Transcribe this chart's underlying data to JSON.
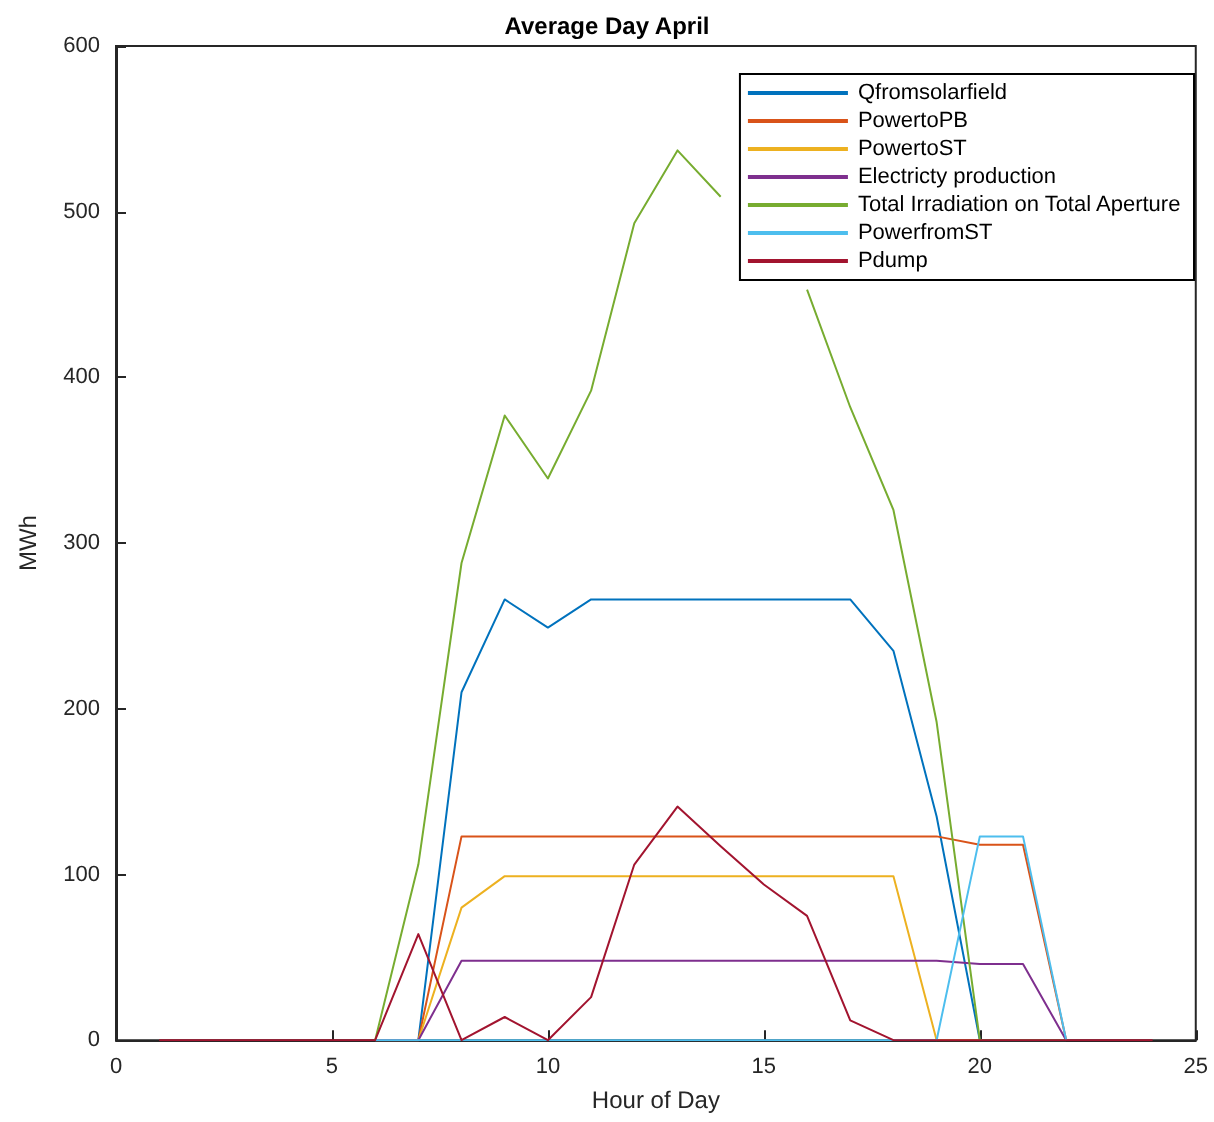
{
  "chart_data": {
    "type": "line",
    "title": "Average Day April",
    "xlabel": "Hour of Day",
    "ylabel": "MWh",
    "x": [
      1,
      2,
      3,
      4,
      5,
      6,
      7,
      8,
      9,
      10,
      11,
      12,
      13,
      14,
      15,
      16,
      17,
      18,
      19,
      20,
      21,
      22,
      23,
      24
    ],
    "series": [
      {
        "name": "Qfromsolarfield",
        "color": "#0072bd",
        "values": [
          null,
          null,
          null,
          null,
          null,
          0,
          0,
          210,
          266,
          249,
          266,
          266,
          266,
          266,
          266,
          266,
          266,
          235,
          135,
          0,
          0,
          0,
          null,
          null
        ]
      },
      {
        "name": "PowertoPB",
        "color": "#d95319",
        "values": [
          null,
          null,
          null,
          null,
          null,
          0,
          0,
          123,
          123,
          123,
          123,
          123,
          123,
          123,
          123,
          123,
          123,
          123,
          123,
          118,
          118,
          0,
          null,
          null
        ]
      },
      {
        "name": "PowertoST",
        "color": "#edb120",
        "values": [
          null,
          null,
          null,
          null,
          null,
          0,
          0,
          80,
          99,
          99,
          99,
          99,
          99,
          99,
          99,
          99,
          99,
          99,
          0,
          0,
          null,
          null,
          null,
          null
        ]
      },
      {
        "name": "Electricty production",
        "color": "#7e2f8e",
        "values": [
          null,
          null,
          null,
          null,
          null,
          0,
          0,
          48,
          48,
          48,
          48,
          48,
          48,
          48,
          48,
          48,
          48,
          48,
          48,
          46,
          46,
          0,
          null,
          null
        ]
      },
      {
        "name": "Total Irradiation on Total Aperture",
        "color": "#77ac30",
        "values": [
          null,
          null,
          null,
          null,
          null,
          0,
          106,
          288,
          377,
          339,
          392,
          493,
          537,
          509,
          null,
          453,
          382,
          320,
          192,
          0,
          0,
          0,
          null,
          null
        ]
      },
      {
        "name": "PowerfromST",
        "color": "#4dbeee",
        "values": [
          null,
          null,
          null,
          null,
          null,
          0,
          0,
          0,
          0,
          0,
          0,
          0,
          0,
          0,
          0,
          0,
          0,
          0,
          0,
          123,
          123,
          0,
          null,
          null
        ]
      },
      {
        "name": "Pdump",
        "color": "#a2142f",
        "values": [
          0,
          0,
          0,
          0,
          0,
          0,
          64,
          0,
          14,
          0,
          26,
          106,
          141,
          117,
          94,
          75,
          12,
          0,
          0,
          0,
          0,
          0,
          0,
          0
        ]
      }
    ],
    "xlim": [
      0,
      25
    ],
    "xticks": [
      0,
      5,
      10,
      15,
      20,
      25
    ],
    "ylim": [
      0,
      600
    ],
    "yticks": [
      0,
      100,
      200,
      300,
      400,
      500,
      600
    ],
    "grid": false,
    "legend": "top right",
    "marker": "none",
    "line_style": "solid"
  }
}
